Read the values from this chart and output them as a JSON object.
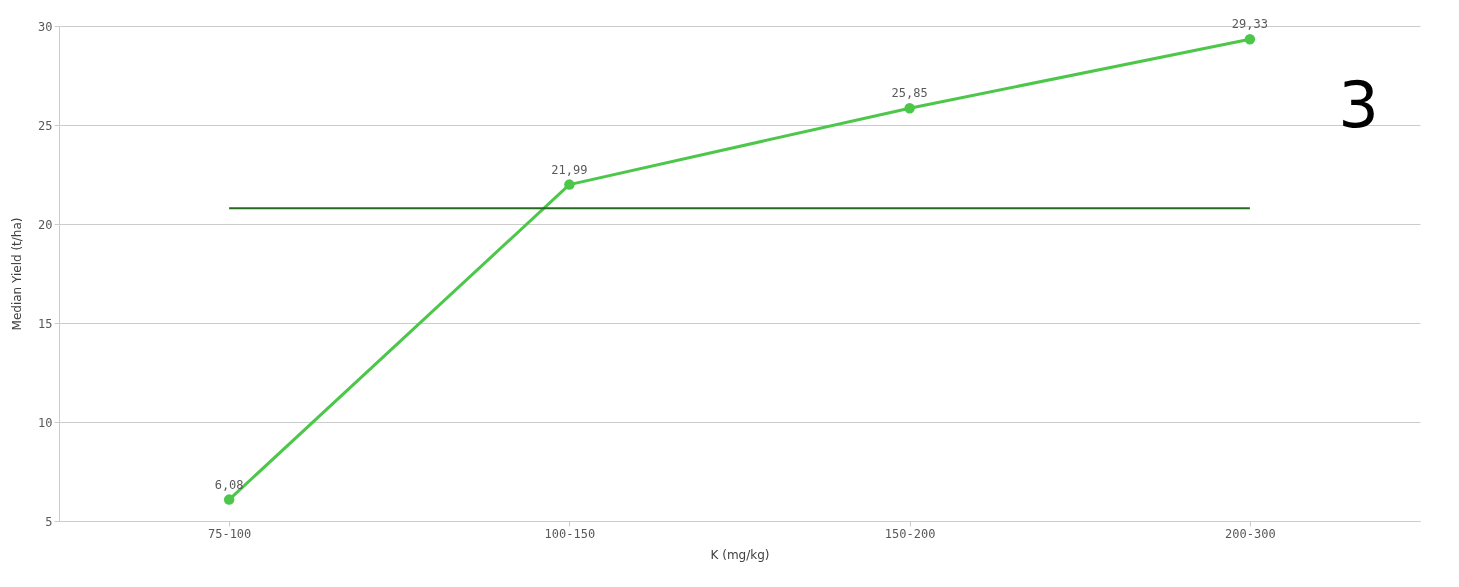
{
  "chart_data": {
    "type": "line",
    "xlabel": "K (mg/kg)",
    "ylabel": "Median Yield (t/ha)",
    "categories": [
      "75-100",
      "100-150",
      "150-200",
      "200-300"
    ],
    "series": [
      {
        "color": "#4cc74a",
        "values": [
          6.08,
          21.99,
          25.85,
          29.33
        ],
        "value_labels": [
          "6,08",
          "21,99",
          "25,85",
          "29,33"
        ]
      }
    ],
    "ylim": [
      5,
      30
    ],
    "yticks": [
      5,
      10,
      15,
      20,
      25,
      30
    ],
    "grid": "y",
    "marker": "circle",
    "line_style": "solid",
    "ref_lines": [
      {
        "axis": "y",
        "value": 20.8,
        "color": "#246b1f"
      }
    ],
    "annotations": [
      "3"
    ]
  }
}
